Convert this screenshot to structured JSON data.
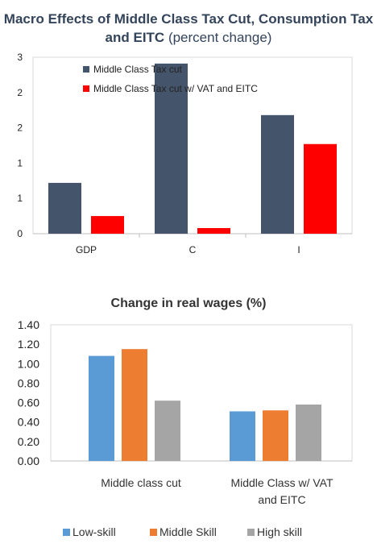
{
  "chart_data": [
    {
      "type": "bar",
      "title_main": "Macro Effects of Middle Class Tax Cut, Consumption Tax and EITC",
      "title_suffix": "(percent change)",
      "categories": [
        "GDP",
        "C",
        "I"
      ],
      "ytick_labels": [
        "0",
        "1",
        "1",
        "2",
        "2",
        "3"
      ],
      "ylim": [
        0,
        2.5
      ],
      "series": [
        {
          "name": "Middle Class Tax cut",
          "values": [
            0.72,
            2.41,
            1.68
          ]
        },
        {
          "name": "Middle Class Tax cut w/ VAT and EITC",
          "values": [
            0.25,
            0.08,
            1.27
          ]
        }
      ],
      "colors": [
        "#44546a",
        "#ff0000"
      ],
      "legend_position": "top-left",
      "grid": false
    },
    {
      "type": "bar",
      "title": "Change in real wages (%)",
      "categories": [
        "Middle class cut",
        "Middle Class w/ VAT and EITC"
      ],
      "ytick_labels": [
        "0.00",
        "0.20",
        "0.40",
        "0.60",
        "0.80",
        "1.00",
        "1.20",
        "1.40"
      ],
      "ylim": [
        0,
        1.4
      ],
      "series": [
        {
          "name": "Low-skill",
          "values": [
            1.08,
            0.51
          ]
        },
        {
          "name": "Middle Skill",
          "values": [
            1.15,
            0.52
          ]
        },
        {
          "name": "High skill",
          "values": [
            0.62,
            0.58
          ]
        }
      ],
      "colors": [
        "#5b9bd5",
        "#ed7d31",
        "#a5a5a5"
      ],
      "legend_position": "bottom",
      "grid": false
    }
  ]
}
